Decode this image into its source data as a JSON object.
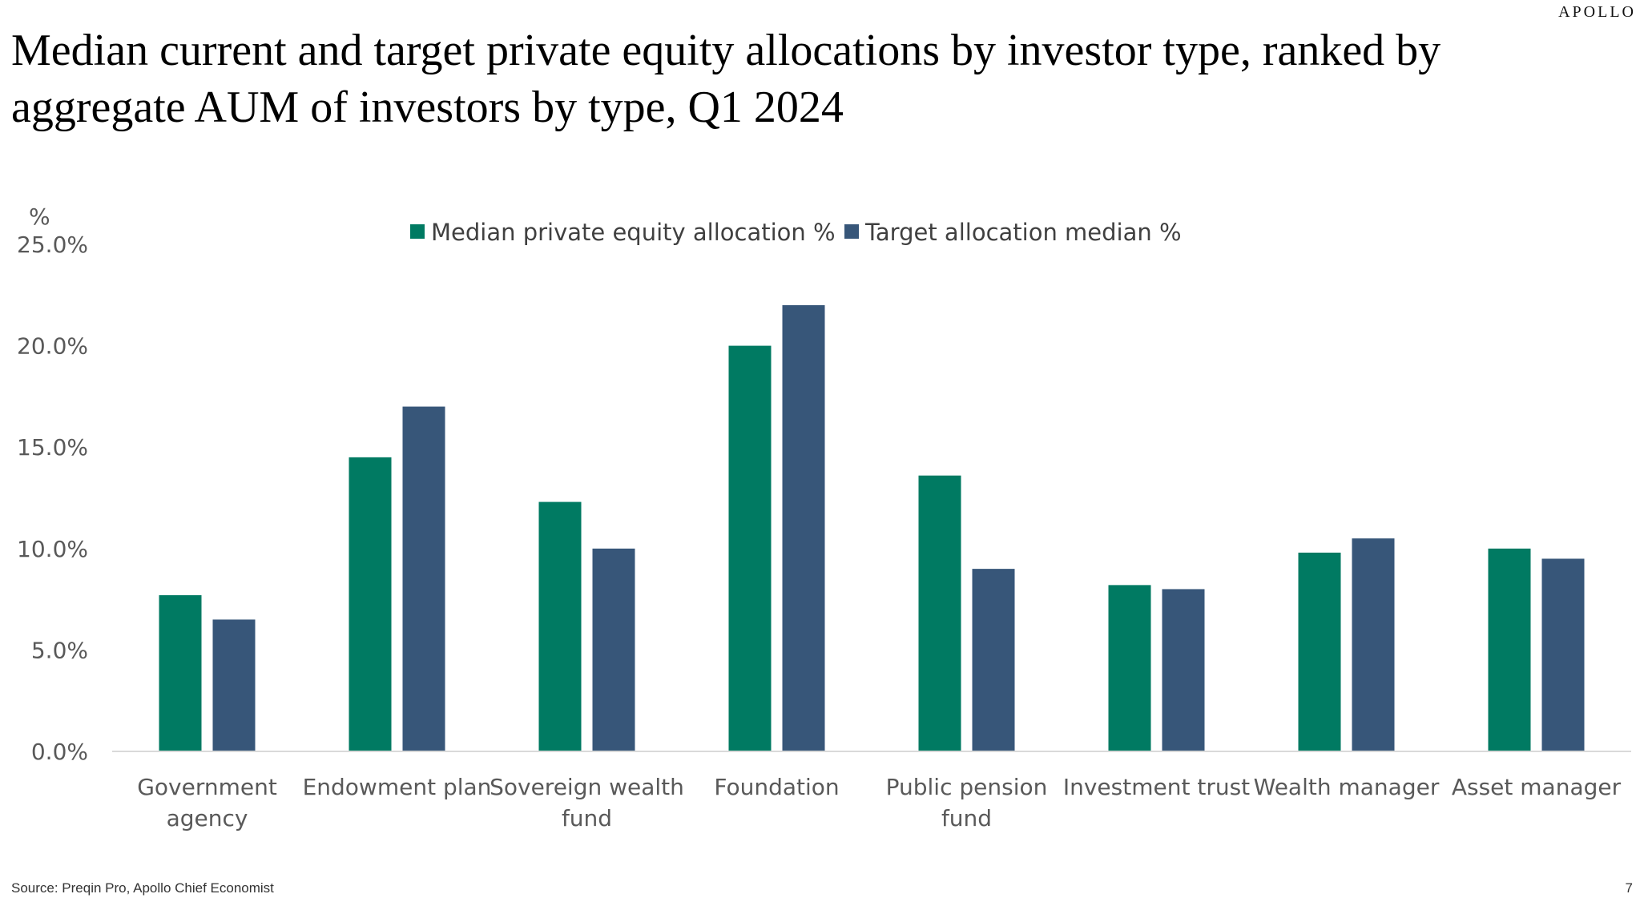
{
  "logo_text": "APOLLO",
  "title": "Median current and target private equity allocations by investor type, ranked by aggregate AUM of investors by type, Q1 2024",
  "source": "Source: Preqin Pro, Apollo Chief Economist",
  "page_number": "7",
  "colors": {
    "series1": "#007A62",
    "series2": "#375679",
    "axis": "#D9D9D9",
    "text": "#595959"
  },
  "chart_data": {
    "type": "bar",
    "ylabel": "%",
    "ylim": [
      0,
      25
    ],
    "yticks": [
      "0.0%",
      "5.0%",
      "10.0%",
      "15.0%",
      "20.0%",
      "25.0%"
    ],
    "legend_position": "top-center",
    "grid": false,
    "categories": [
      [
        "Government",
        "agency"
      ],
      [
        "Endowment plan"
      ],
      [
        "Sovereign wealth",
        "fund"
      ],
      [
        "Foundation"
      ],
      [
        "Public pension",
        "fund"
      ],
      [
        "Investment trust"
      ],
      [
        "Wealth manager"
      ],
      [
        "Asset manager"
      ]
    ],
    "series": [
      {
        "name": "Median private equity allocation %",
        "values": [
          7.7,
          14.5,
          12.3,
          20.0,
          13.6,
          8.2,
          9.8,
          10.0
        ]
      },
      {
        "name": "Target allocation median %",
        "values": [
          6.5,
          17.0,
          10.0,
          22.0,
          9.0,
          8.0,
          10.5,
          9.5
        ]
      }
    ]
  }
}
